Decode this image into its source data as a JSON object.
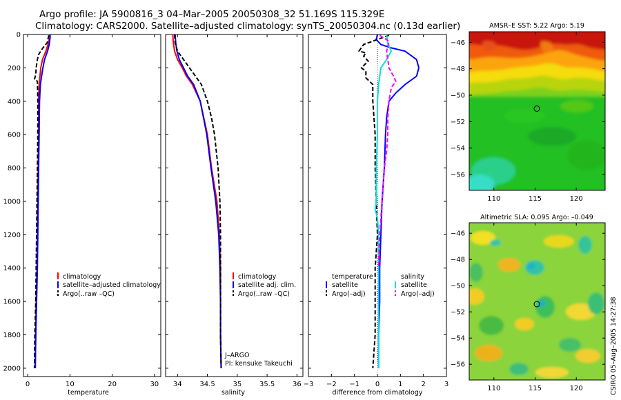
{
  "header": {
    "line1": "Argo profile: JA 5900816_3 04–Mar–2005 20050308_32 51.169S 115.329E",
    "line2": "Climatology: CARS2000. Satellite–adjusted climatology: synTS_20050304.nc (0.13d earlier)"
  },
  "side_label": "CSIRO 05–Aug–2005 14:27:38",
  "chart_data": [
    {
      "type": "line",
      "xlabel": "temperature",
      "ylabel": "",
      "xlim": [
        -1,
        31.5
      ],
      "ylim": [
        2050,
        0
      ],
      "xticks": [
        0,
        10,
        20,
        30
      ],
      "yticks": [
        0,
        200,
        400,
        600,
        800,
        1000,
        1200,
        1400,
        1600,
        1800,
        2000
      ],
      "legend_entries": [
        "climatology",
        "satellite–adjusted climatology",
        "Argo(..raw –QC)"
      ],
      "legend": [
        "climatology",
        "satellite–adjusted climatology",
        "Argo(..raw –QC)"
      ],
      "series": [
        {
          "color": "#ff0000",
          "dash": "",
          "y": [
            0,
            20,
            60,
            100,
            150,
            200,
            250,
            300,
            400,
            600,
            800,
            1000,
            1200,
            1400,
            1600,
            1800,
            2000
          ],
          "values": [
            5.3,
            5.2,
            4.8,
            4.3,
            3.5,
            3.1,
            2.9,
            2.7,
            2.6,
            2.6,
            2.5,
            2.4,
            2.3,
            2.2,
            2.0,
            1.9,
            1.8
          ]
        },
        {
          "color": "#0000ff",
          "dash": "",
          "y": [
            0,
            20,
            60,
            100,
            150,
            200,
            250,
            300,
            400,
            600,
            800,
            1000,
            1200,
            1400,
            1600,
            1800,
            2000
          ],
          "values": [
            5.3,
            5.3,
            5.1,
            4.7,
            4.0,
            3.6,
            3.3,
            3.0,
            2.8,
            2.7,
            2.6,
            2.5,
            2.4,
            2.3,
            2.1,
            1.9,
            1.8
          ]
        },
        {
          "color": "#000000",
          "dash": "6,3",
          "y": [
            5,
            50,
            80,
            100,
            120,
            150,
            200,
            240,
            270,
            280,
            400,
            600,
            800,
            1000,
            1200,
            1400,
            1600,
            1800,
            2000
          ],
          "values": [
            5.0,
            4.6,
            3.6,
            3.1,
            2.6,
            2.3,
            2.0,
            1.9,
            1.6,
            2.3,
            2.4,
            2.4,
            2.3,
            2.2,
            2.1,
            2.0,
            1.9,
            1.7,
            1.6
          ]
        }
      ]
    },
    {
      "type": "line",
      "xlabel": "salinity",
      "ylabel": "",
      "xlim": [
        33.8,
        36.1
      ],
      "ylim": [
        2050,
        0
      ],
      "xticks": [
        34,
        34.5,
        35,
        35.5,
        36
      ],
      "yticks": [
        0,
        200,
        400,
        600,
        800,
        1000,
        1200,
        1400,
        1600,
        1800,
        2000
      ],
      "legend_entries": [
        "climatology",
        "satellite adj. clim.",
        "Argo(..raw –QC)"
      ],
      "legend": [
        "climatology",
        "satellite adj. clim.",
        "Argo(..raw –QC)"
      ],
      "annotations": [
        "J–ARGO",
        "PI: kensuke Takeuchi"
      ],
      "series": [
        {
          "color": "#ff0000",
          "dash": "",
          "y": [
            0,
            50,
            100,
            150,
            200,
            250,
            300,
            400,
            600,
            800,
            1000,
            1200,
            1400,
            1600,
            1800,
            2000
          ],
          "values": [
            33.92,
            33.93,
            33.95,
            34.0,
            34.08,
            34.15,
            34.25,
            34.38,
            34.5,
            34.57,
            34.66,
            34.7,
            34.72,
            34.72,
            34.72,
            34.73
          ]
        },
        {
          "color": "#0000ff",
          "dash": "",
          "y": [
            0,
            50,
            100,
            150,
            200,
            250,
            300,
            400,
            600,
            800,
            1000,
            1200,
            1400,
            1600,
            1800,
            2000
          ],
          "values": [
            33.96,
            33.97,
            33.99,
            34.03,
            34.1,
            34.17,
            34.27,
            34.38,
            34.49,
            34.56,
            34.64,
            34.69,
            34.71,
            34.72,
            34.72,
            34.73
          ]
        },
        {
          "color": "#000000",
          "dash": "6,3",
          "y": [
            0,
            50,
            100,
            150,
            200,
            250,
            300,
            400,
            500,
            600,
            800,
            1000,
            1200,
            1400,
            1600,
            1800,
            2000
          ],
          "values": [
            33.95,
            33.96,
            34.0,
            34.1,
            34.2,
            34.3,
            34.4,
            34.5,
            34.57,
            34.62,
            34.68,
            34.71,
            34.72,
            34.72,
            34.72,
            34.72,
            34.73
          ]
        }
      ]
    },
    {
      "type": "line",
      "xlabel": "difference from climatology",
      "ylabel": "",
      "xlim": [
        -3,
        3
      ],
      "ylim": [
        2050,
        0
      ],
      "xticks": [
        -3,
        -2,
        -1,
        0,
        1,
        2,
        3
      ],
      "yticks": [
        0,
        200,
        400,
        600,
        800,
        1000,
        1200,
        1400,
        1600,
        1800,
        2000
      ],
      "legend_left": [
        "temperature",
        "satellite",
        "Argo(–adj)"
      ],
      "legend_right": [
        "salinity",
        "satellite",
        "Argo(–adj)"
      ],
      "series": [
        {
          "color": "#0000ff",
          "dash": "",
          "y": [
            0,
            30,
            60,
            80,
            100,
            150,
            200,
            250,
            300,
            350,
            400,
            500,
            600,
            800,
            1000,
            1200,
            1400,
            1600,
            1800,
            2000
          ],
          "values": [
            0.0,
            -0.05,
            0.15,
            0.6,
            1.2,
            1.7,
            1.8,
            1.7,
            1.2,
            0.8,
            0.5,
            0.4,
            0.35,
            0.3,
            0.2,
            0.15,
            0.1,
            0.1,
            0.05,
            0.05
          ]
        },
        {
          "color": "#000000",
          "dash": "6,3",
          "y": [
            5,
            60,
            100,
            110,
            130,
            160,
            200,
            220,
            260,
            300,
            400,
            600,
            800,
            1000,
            1200,
            1400,
            1600,
            1800,
            2000
          ],
          "values": [
            0.5,
            -0.6,
            -0.8,
            -0.5,
            -0.6,
            -0.4,
            -0.7,
            -0.5,
            -0.5,
            -0.2,
            -0.2,
            -0.1,
            -0.1,
            -0.05,
            0.0,
            -0.1,
            -0.1,
            -0.1,
            -0.2
          ]
        },
        {
          "color": "#00e0e0",
          "dash": "",
          "y": [
            0,
            50,
            100,
            150,
            200,
            300,
            400,
            600,
            800,
            1000,
            1050,
            1100,
            1200,
            1400,
            1600,
            1800,
            2000
          ],
          "values": [
            0.4,
            0.45,
            0.6,
            0.4,
            0.15,
            0.05,
            0.0,
            0.0,
            -0.05,
            -0.05,
            -0.1,
            0.0,
            0.05,
            0.05,
            0.05,
            0.05,
            0.05
          ]
        },
        {
          "color": "#ff00ff",
          "dash": "6,3",
          "y": [
            5,
            40,
            100,
            200,
            250,
            280,
            320,
            400,
            500,
            600,
            700,
            800,
            1000,
            1200,
            1400
          ],
          "values": [
            0.1,
            0.5,
            0.4,
            0.5,
            0.7,
            0.8,
            0.6,
            0.5,
            0.45,
            0.45,
            0.4,
            0.3,
            0.2,
            0.1,
            0.05
          ]
        }
      ]
    },
    {
      "type": "heatmap",
      "title": "AMSR–E SST: 5.22 Argo: 5.19",
      "xlim": [
        107,
        123.5
      ],
      "ylim": [
        -57.2,
        -45.2
      ],
      "xticks": [
        110,
        115,
        120
      ],
      "yticks": [
        -46,
        -48,
        -50,
        -52,
        -54,
        -56
      ],
      "marker": {
        "lon": 115.33,
        "lat": -51.17
      }
    },
    {
      "type": "heatmap",
      "title": "Altimetric SLA: 0.095 Argo: –0.049",
      "xlim": [
        107,
        123.5
      ],
      "ylim": [
        -57.2,
        -45.2
      ],
      "xticks": [
        110,
        115,
        120
      ],
      "yticks": [
        -46,
        -48,
        -50,
        -52,
        -54,
        -56
      ],
      "marker": {
        "lon": 115.33,
        "lat": -51.17
      }
    }
  ]
}
